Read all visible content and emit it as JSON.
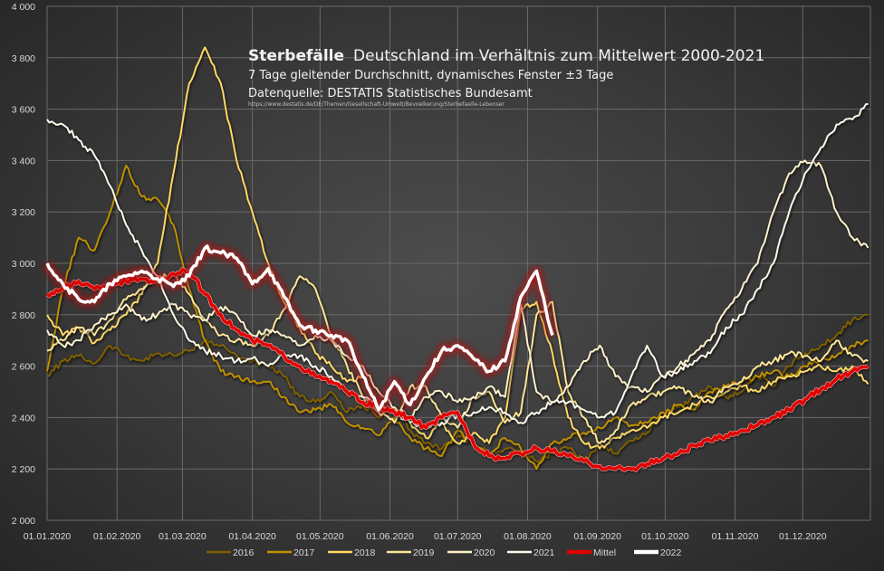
{
  "chart_data": {
    "type": "line",
    "title_bold": "Sterbefälle",
    "title_rest": "Deutschland  im Verhältnis  zum Mittelwert  2000-2021",
    "subtitle": "7 Tage gleitender  Durchschnitt,  dynamisches  Fenster  ±3 Tage",
    "source": "Datenquelle: DESTATIS  Statistisches Bundesamt",
    "source_url": "https://www.destatis.de/DE/Themen/Gesellschaft-Umwelt/Bevoelkerung/Sterbefaelle-Lebenser",
    "xlabel": "",
    "ylabel": "",
    "ylim": [
      2000,
      4000
    ],
    "yticks": [
      2000,
      2200,
      2400,
      2600,
      2800,
      3000,
      3200,
      3400,
      3600,
      3800,
      4000
    ],
    "ytick_labels": [
      "2 000",
      "2 200",
      "2 400",
      "2 600",
      "2 800",
      "3 000",
      "3 200",
      "3 400",
      "3 600",
      "3 800",
      "4 000"
    ],
    "xlim_days": [
      0,
      365
    ],
    "xtick_days": [
      0,
      31,
      60,
      91,
      121,
      152,
      182,
      213,
      244,
      274,
      305,
      335
    ],
    "xtick_labels": [
      "01.01.2020",
      "01.02.2020",
      "01.03.2020",
      "01.04.2020",
      "01.05.2020",
      "01.06.2020",
      "01.07.2020",
      "01.08.2020",
      "01.09.2020",
      "01.10.2020",
      "01.11.2020",
      "01.12.2020"
    ],
    "grid": true,
    "legend_position": "bottom",
    "x_days": [
      0,
      7,
      14,
      21,
      28,
      35,
      42,
      49,
      56,
      63,
      70,
      77,
      84,
      91,
      98,
      105,
      112,
      119,
      126,
      133,
      140,
      147,
      154,
      161,
      168,
      175,
      182,
      189,
      196,
      203,
      210,
      217,
      224,
      231,
      238,
      245,
      252,
      259,
      266,
      273,
      280,
      287,
      294,
      301,
      308,
      315,
      322,
      329,
      336,
      343,
      350,
      357,
      364
    ],
    "series": [
      {
        "name": "2016",
        "color": "#7f6000",
        "width": 2,
        "values": [
          2560,
          2620,
          2640,
          2610,
          2680,
          2640,
          2620,
          2650,
          2640,
          2660,
          2700,
          2680,
          2640,
          2620,
          2600,
          2560,
          2480,
          2460,
          2500,
          2420,
          2450,
          2400,
          2440,
          2350,
          2300,
          2280,
          2330,
          2300,
          2260,
          2280,
          2270,
          2230,
          2260,
          2280,
          2230,
          2300,
          2260,
          2310,
          2340,
          2420,
          2440,
          2480,
          2520,
          2480,
          2500,
          2560,
          2520,
          2600,
          2650,
          2680,
          2720,
          2780,
          2800
        ]
      },
      {
        "name": "2017",
        "color": "#bf9000",
        "width": 2,
        "values": [
          2580,
          2900,
          3100,
          3050,
          3200,
          3380,
          3260,
          3250,
          3150,
          2900,
          2700,
          2580,
          2560,
          2540,
          2540,
          2480,
          2420,
          2430,
          2450,
          2380,
          2360,
          2330,
          2400,
          2320,
          2280,
          2250,
          2350,
          2300,
          2260,
          2320,
          2280,
          2200,
          2300,
          2320,
          2340,
          2360,
          2400,
          2370,
          2380,
          2420,
          2450,
          2430,
          2500,
          2520,
          2540,
          2560,
          2580,
          2560,
          2600,
          2620,
          2640,
          2680,
          2700
        ]
      },
      {
        "name": "2018",
        "color": "#ffd966",
        "width": 2,
        "values": [
          2800,
          2720,
          2750,
          2690,
          2740,
          2800,
          2880,
          3000,
          3350,
          3700,
          3840,
          3700,
          3400,
          3200,
          3000,
          2850,
          2750,
          2650,
          2600,
          2540,
          2560,
          2450,
          2420,
          2380,
          2320,
          2380,
          2300,
          2340,
          2300,
          2400,
          2820,
          2850,
          2650,
          2400,
          2300,
          2280,
          2320,
          2350,
          2360,
          2400,
          2420,
          2450,
          2480,
          2500,
          2520,
          2500,
          2540,
          2560,
          2580,
          2600,
          2580,
          2600,
          2530
        ]
      },
      {
        "name": "2019",
        "color": "#ffe699",
        "width": 2,
        "values": [
          2660,
          2700,
          2750,
          2720,
          2780,
          2860,
          2900,
          2940,
          2960,
          2880,
          2780,
          2720,
          2700,
          2680,
          2720,
          2820,
          2950,
          2900,
          2720,
          2600,
          2480,
          2420,
          2380,
          2520,
          2520,
          2400,
          2360,
          2480,
          2500,
          2380,
          2420,
          2800,
          2850,
          2500,
          2400,
          2300,
          2350,
          2450,
          2480,
          2500,
          2520,
          2480,
          2460,
          2520,
          2540,
          2600,
          2620,
          2650,
          2640,
          2620,
          2700,
          2640,
          2620
        ]
      },
      {
        "name": "2020",
        "color": "#fff2cc",
        "width": 2,
        "values": [
          2740,
          2680,
          2700,
          2760,
          2800,
          2840,
          2780,
          2800,
          2840,
          2800,
          2780,
          2830,
          2800,
          2720,
          2740,
          2720,
          2680,
          2720,
          2700,
          2640,
          2600,
          2500,
          2440,
          2400,
          2480,
          2500,
          2460,
          2480,
          2520,
          2480,
          2840,
          2500,
          2460,
          2520,
          2620,
          2680,
          2560,
          2520,
          2500,
          2560,
          2600,
          2650,
          2700,
          2820,
          2900,
          3000,
          3200,
          3350,
          3400,
          3380,
          3200,
          3100,
          3060
        ]
      },
      {
        "name": "2021",
        "color": "#fffaeb",
        "width": 2,
        "values": [
          3560,
          3540,
          3480,
          3420,
          3300,
          3150,
          3050,
          2950,
          2800,
          2700,
          2660,
          2640,
          2620,
          2630,
          2600,
          2650,
          2640,
          2600,
          2560,
          2500,
          2480,
          2450,
          2420,
          2380,
          2360,
          2380,
          2410,
          2420,
          2440,
          2420,
          2380,
          2420,
          2460,
          2460,
          2430,
          2400,
          2420,
          2560,
          2680,
          2560,
          2580,
          2620,
          2650,
          2750,
          2800,
          2900,
          3000,
          3200,
          3350,
          3450,
          3540,
          3560,
          3620
        ]
      },
      {
        "name": "Mittel",
        "color": "#e00000",
        "width": 3.5,
        "glow": false,
        "values": [
          2880,
          2900,
          2930,
          2900,
          2920,
          2930,
          2940,
          2930,
          2960,
          2970,
          2880,
          2800,
          2740,
          2700,
          2680,
          2640,
          2600,
          2560,
          2540,
          2500,
          2460,
          2440,
          2420,
          2400,
          2360,
          2400,
          2420,
          2300,
          2250,
          2240,
          2260,
          2280,
          2270,
          2250,
          2230,
          2210,
          2200,
          2200,
          2220,
          2240,
          2260,
          2290,
          2310,
          2330,
          2350,
          2370,
          2400,
          2430,
          2470,
          2510,
          2550,
          2580,
          2600
        ]
      },
      {
        "name": "2022",
        "color": "#ffffff",
        "width": 3.5,
        "glow": true,
        "partial": true,
        "values": [
          3000,
          2920,
          2860,
          2850,
          2920,
          2950,
          2970,
          2940,
          2910,
          2950,
          3060,
          3040,
          3020,
          2920,
          2980,
          2870,
          2760,
          2740,
          2720,
          2700,
          2560,
          2430,
          2540,
          2450,
          2560,
          2660,
          2680,
          2630,
          2580,
          2620,
          2870,
          2970,
          2720
        ]
      }
    ]
  }
}
